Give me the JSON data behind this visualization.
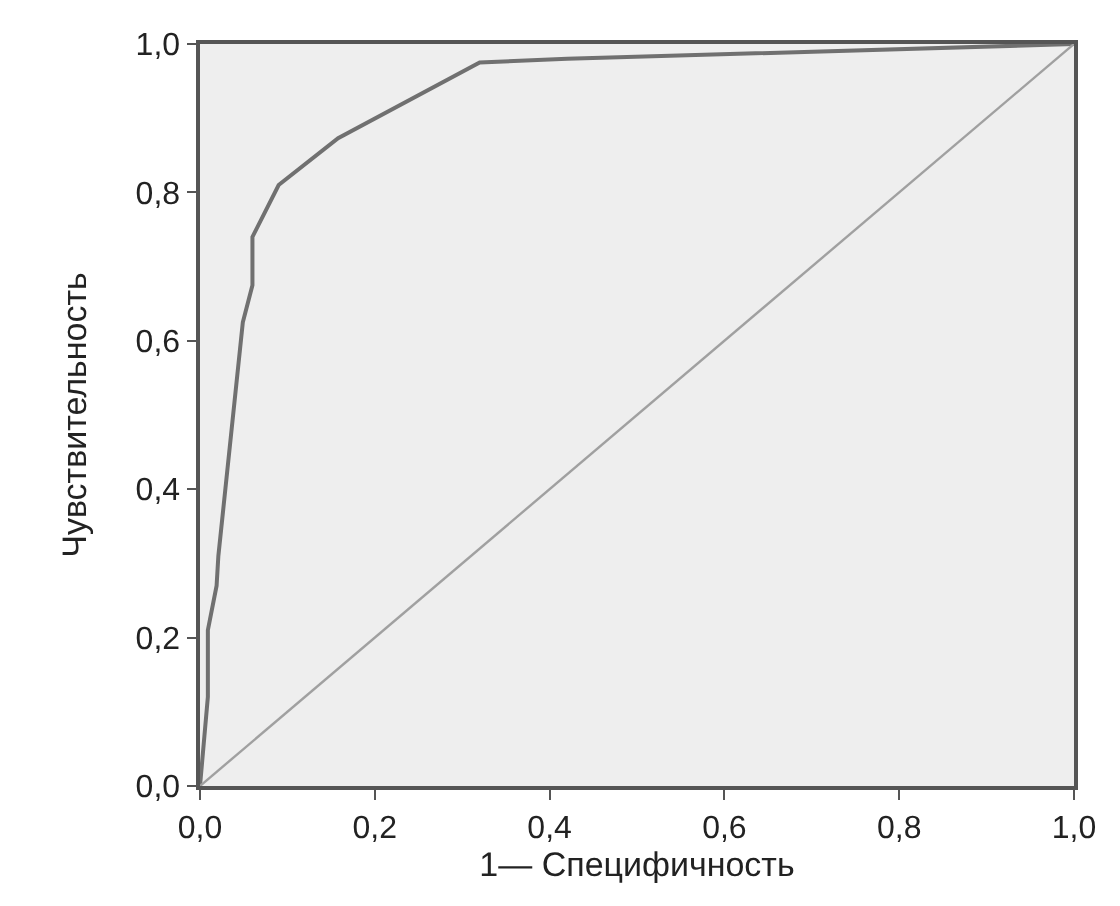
{
  "chart_data": {
    "type": "line",
    "xlabel": "1— Специфичность",
    "ylabel": "Чувствительность",
    "series": [
      {
        "x": [
          0,
          0.009,
          0.009,
          0.019,
          0.021,
          0.049,
          0.06,
          0.06,
          0.09,
          0.158,
          0.32,
          0.42,
          1
        ],
        "values": [
          0,
          0.12,
          0.21,
          0.27,
          0.31,
          0.625,
          0.675,
          0.74,
          0.81,
          0.873,
          0.975,
          0.98,
          1
        ],
        "color": "#707070"
      },
      {
        "x": [
          0,
          1
        ],
        "values": [
          0,
          1
        ],
        "color": "#a0a0a0"
      }
    ],
    "xlim": [
      0,
      1
    ],
    "ylim": [
      0,
      1
    ],
    "xticks": [
      {
        "value": 0,
        "label": "0,0"
      },
      {
        "value": 0.2,
        "label": "0,2"
      },
      {
        "value": 0.4,
        "label": "0,4"
      },
      {
        "value": 0.6,
        "label": "0,6"
      },
      {
        "value": 0.8,
        "label": "0,8"
      },
      {
        "value": 1,
        "label": "1,0"
      }
    ],
    "yticks": [
      {
        "value": 0,
        "label": "0,0"
      },
      {
        "value": 0.2,
        "label": "0,2"
      },
      {
        "value": 0.4,
        "label": "0,4"
      },
      {
        "value": 0.6,
        "label": "0,6"
      },
      {
        "value": 0.8,
        "label": "0,8"
      },
      {
        "value": 1,
        "label": "1,0"
      }
    ],
    "grid": false,
    "marker": "none",
    "line_style": "solid"
  }
}
